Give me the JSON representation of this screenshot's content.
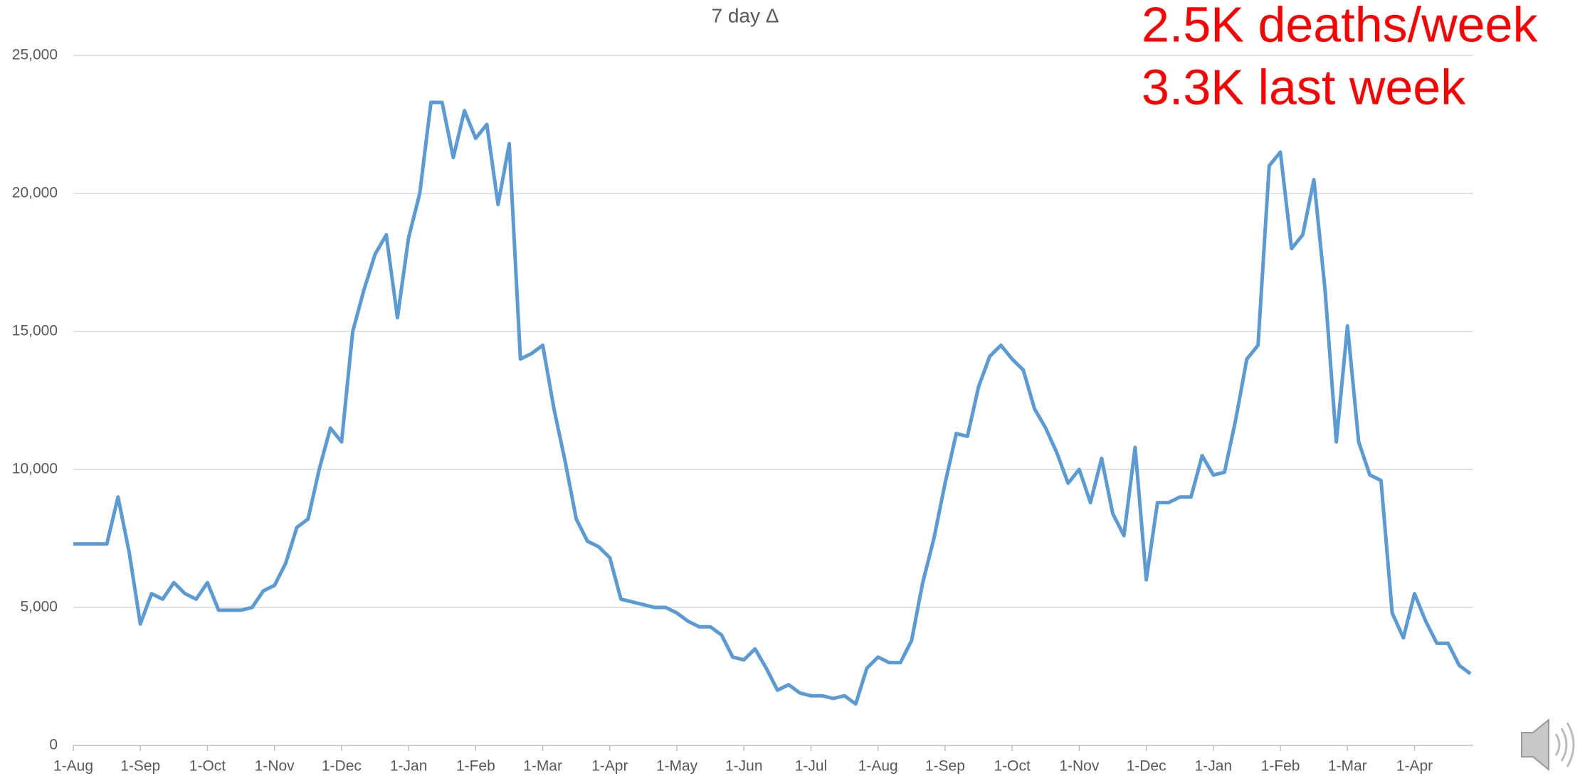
{
  "chart_data": {
    "type": "line",
    "title": "7 day Δ",
    "annotations": [
      "2.5K deaths/week",
      "3.3K last week"
    ],
    "annotation_color": "#ff0000",
    "categories": [
      "1-Aug",
      null,
      null,
      null,
      null,
      null,
      "1-Sep",
      null,
      null,
      null,
      null,
      null,
      "1-Oct",
      null,
      null,
      null,
      null,
      null,
      "1-Nov",
      null,
      null,
      null,
      null,
      null,
      "1-Dec",
      null,
      null,
      null,
      null,
      null,
      "1-Jan",
      null,
      null,
      null,
      null,
      null,
      "1-Feb",
      null,
      null,
      null,
      null,
      null,
      "1-Mar",
      null,
      null,
      null,
      null,
      null,
      "1-Apr",
      null,
      null,
      null,
      null,
      null,
      "1-May",
      null,
      null,
      null,
      null,
      null,
      "1-Jun",
      null,
      null,
      null,
      null,
      null,
      "1-Jul",
      null,
      null,
      null,
      null,
      null,
      "1-Aug",
      null,
      null,
      null,
      null,
      null,
      "1-Sep",
      null,
      null,
      null,
      null,
      null,
      "1-Oct",
      null,
      null,
      null,
      null,
      null,
      "1-Nov",
      null,
      null,
      null,
      null,
      null,
      "1-Dec",
      null,
      null,
      null,
      null,
      null,
      "1-Jan",
      null,
      null,
      null,
      null,
      null,
      "1-Feb",
      null,
      null,
      null,
      null,
      null,
      "1-Mar",
      null,
      null,
      null,
      null,
      null,
      "1-Apr",
      null,
      null,
      null,
      null,
      null
    ],
    "series": [
      {
        "name": "7 day Δ",
        "color": "#5b9bd5",
        "values": [
          7300,
          7300,
          7300,
          7300,
          9000,
          7000,
          4400,
          5500,
          5300,
          5900,
          5500,
          5300,
          5900,
          4900,
          4900,
          4900,
          5000,
          5600,
          5800,
          6600,
          7900,
          8200,
          10000,
          11500,
          11000,
          15000,
          16500,
          17800,
          18500,
          15500,
          18400,
          20000,
          23300,
          23300,
          21300,
          23000,
          22000,
          22500,
          19600,
          21800,
          14000,
          14200,
          14500,
          12200,
          10300,
          8200,
          7400,
          7200,
          6800,
          5300,
          5200,
          5100,
          5000,
          5000,
          4800,
          4500,
          4300,
          4300,
          4000,
          3200,
          3100,
          3500,
          2800,
          2000,
          2200,
          1900,
          1800,
          1800,
          1700,
          1800,
          1500,
          2800,
          3200,
          3000,
          3000,
          3800,
          5900,
          7500,
          9500,
          11300,
          11200,
          13000,
          14100,
          14500,
          14000,
          13600,
          12200,
          11500,
          10600,
          9500,
          10000,
          8800,
          10400,
          8400,
          7600,
          10800,
          6000,
          8800,
          8800,
          9000,
          9000,
          10500,
          9800,
          9900,
          11800,
          14000,
          14500,
          21000,
          21500,
          18000,
          18500,
          20500,
          16500,
          11000,
          15200,
          11000,
          9800,
          9600,
          4800,
          3900,
          5500,
          4500,
          3700,
          3700,
          2900,
          2600
        ]
      }
    ],
    "ylim": [
      0,
      25000
    ],
    "yticks": [
      0,
      {
        "value": 5000,
        "label": "5,000"
      },
      {
        "value": 10000,
        "label": "10,000"
      },
      {
        "value": 15000,
        "label": "15,000"
      },
      {
        "value": 20000,
        "label": "20,000"
      },
      {
        "value": 25000,
        "label": "25,000"
      }
    ],
    "grid": true
  }
}
